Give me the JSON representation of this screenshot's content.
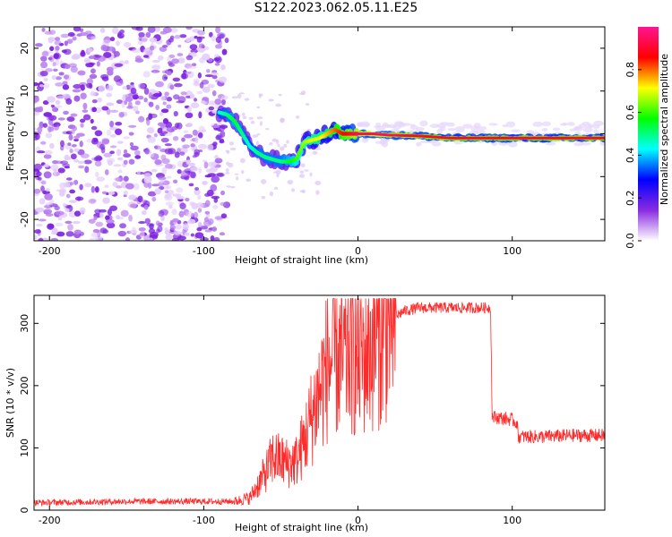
{
  "title": "S122.2023.062.05.11.E25",
  "chart_data": [
    {
      "type": "heatmap",
      "xlabel": "Height of straight line (km)",
      "ylabel": "Frequency (Hz)",
      "xlim": [
        -210,
        160
      ],
      "ylim": [
        -25,
        25
      ],
      "xticks": [
        -200,
        -100,
        0,
        100
      ],
      "yticks": [
        -20,
        -10,
        0,
        10,
        20
      ],
      "colorbar": {
        "label": "Normalized spectral amplitude",
        "range": [
          0,
          1
        ],
        "ticks": [
          "0.0",
          "0.2",
          "0.4",
          "0.6",
          "0.8"
        ],
        "colormap": [
          "#ffffff",
          "#8a2be2",
          "#0000ff",
          "#00ffff",
          "#00ff00",
          "#ffff00",
          "#ff0000",
          "#ff1493"
        ]
      },
      "ridge": {
        "x": [
          -90,
          -85,
          -80,
          -75,
          -70,
          -65,
          -60,
          -55,
          -50,
          -45,
          -40,
          -35,
          -30,
          -25,
          -20,
          -15,
          -10,
          -5,
          0,
          10,
          20,
          40,
          60,
          100,
          160
        ],
        "y": [
          5,
          4.5,
          3,
          0,
          -3,
          -4.5,
          -5.5,
          -6,
          -6.5,
          -6.5,
          -6,
          -2,
          -1.5,
          -1,
          0,
          1,
          0,
          0,
          0,
          0,
          -0.3,
          -0.5,
          -1,
          -1,
          -1
        ],
        "amplitude": [
          0.45,
          0.5,
          0.55,
          0.5,
          0.45,
          0.5,
          0.5,
          0.5,
          0.5,
          0.55,
          0.6,
          0.65,
          0.7,
          0.7,
          0.75,
          0.8,
          0.85,
          0.9,
          0.95,
          0.95,
          0.95,
          0.9,
          0.9,
          0.9,
          0.9
        ]
      }
    },
    {
      "type": "line",
      "xlabel": "Height of straight line (km)",
      "ylabel": "SNR (10 * v/v)",
      "xlim": [
        -210,
        160
      ],
      "ylim": [
        0,
        345
      ],
      "xticks": [
        -200,
        -100,
        0,
        100
      ],
      "yticks": [
        0,
        100,
        200,
        300
      ],
      "color": "#ff2a2a",
      "series": [
        {
          "x": [
            -210,
            -150,
            -100,
            -80,
            -70,
            -60,
            -55,
            -50,
            -45,
            -40,
            -35,
            -30,
            -25,
            -20,
            -15,
            -10,
            -5,
            0,
            10,
            20,
            30,
            40,
            60,
            80,
            86,
            87,
            100,
            103,
            104,
            120,
            140,
            160
          ],
          "y": [
            12,
            14,
            14,
            14,
            20,
            60,
            85,
            80,
            75,
            80,
            110,
            150,
            190,
            230,
            250,
            240,
            260,
            240,
            270,
            305,
            320,
            325,
            325,
            325,
            325,
            150,
            145,
            140,
            118,
            118,
            120,
            120
          ]
        }
      ]
    }
  ]
}
